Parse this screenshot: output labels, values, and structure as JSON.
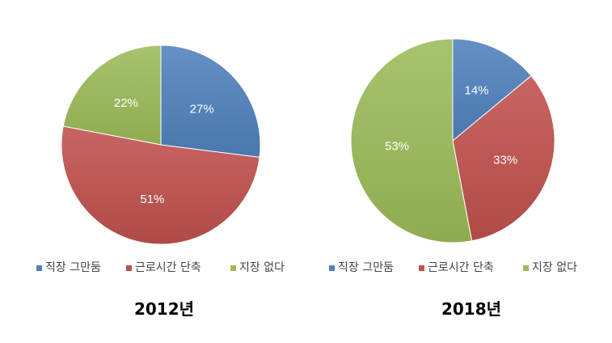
{
  "chart_data": [
    {
      "type": "pie",
      "title": "2012년",
      "categories": [
        "직장 그만둠",
        "근로시간 단축",
        "지장 없다"
      ],
      "values": [
        27,
        51,
        22
      ],
      "value_labels": [
        "27%",
        "51%",
        "22%"
      ],
      "colors": [
        "#4F81BD",
        "#C0504D",
        "#9BBB59"
      ],
      "legend_position": "bottom"
    },
    {
      "type": "pie",
      "title": "2018년",
      "categories": [
        "직장 그만둠",
        "근로시간 단축",
        "지장 없다"
      ],
      "values": [
        14,
        33,
        53
      ],
      "value_labels": [
        "14%",
        "33%",
        "53%"
      ],
      "colors": [
        "#4F81BD",
        "#C0504D",
        "#9BBB59"
      ],
      "legend_position": "bottom"
    }
  ]
}
